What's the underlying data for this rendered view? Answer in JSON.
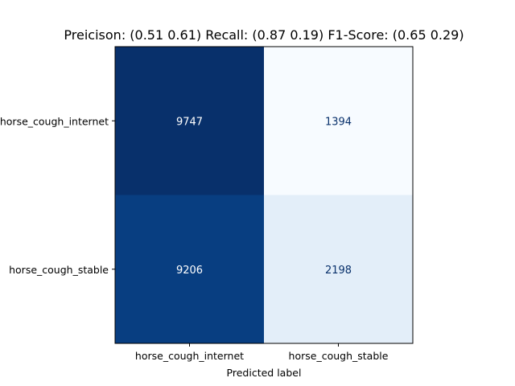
{
  "chart_data": {
    "type": "heatmap",
    "title": "Preicison: (0.51 0.61)   Recall: (0.87 0.19)   F1-Score: (0.65 0.29)",
    "xlabel": "Predicted label",
    "ylabel": "",
    "x_categories": [
      "horse_cough_internet",
      "horse_cough_stable"
    ],
    "y_categories": [
      "horse_cough_internet",
      "horse_cough_stable"
    ],
    "values": [
      [
        9747,
        1394
      ],
      [
        9206,
        2198
      ]
    ],
    "colormap": "Blues",
    "cell_colors": [
      [
        "#08306b",
        "#f7fbff"
      ],
      [
        "#083e81",
        "#e3eef9"
      ]
    ],
    "text_colors": [
      [
        "#ffffff",
        "#08306b"
      ],
      [
        "#ffffff",
        "#08306b"
      ]
    ]
  }
}
